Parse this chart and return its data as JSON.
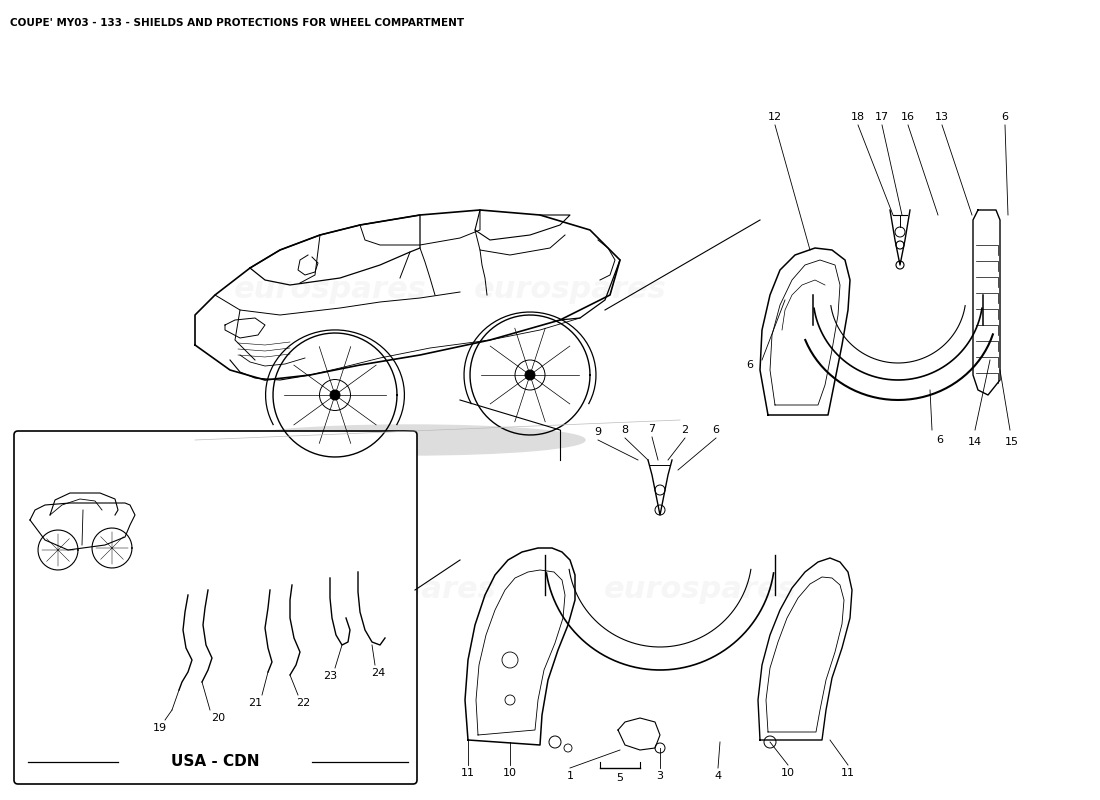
{
  "title": "COUPE' MY03 - 133 - SHIELDS AND PROTECTIONS FOR WHEEL COMPARTMENT",
  "title_fontsize": 7.5,
  "title_fontweight": "bold",
  "background_color": "#ffffff",
  "watermark_text": "eurospares",
  "watermark_color": "#d0d0d0",
  "usa_cdn_label": "USA - CDN",
  "fig_width": 11.0,
  "fig_height": 8.0,
  "dpi": 100
}
